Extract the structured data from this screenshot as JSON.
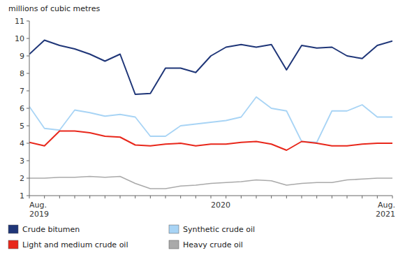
{
  "chart_data": {
    "type": "line",
    "title": "millions of cubic metres",
    "categories": [
      "Aug.\n2019",
      null,
      null,
      null,
      null,
      null,
      null,
      null,
      null,
      null,
      null,
      null,
      "2020",
      null,
      null,
      null,
      null,
      null,
      null,
      null,
      null,
      null,
      null,
      null,
      "Aug.\n2021"
    ],
    "series": [
      {
        "name": "Crude bitumen",
        "color": "#1f3678",
        "values": [
          9.1,
          9.9,
          9.6,
          9.4,
          9.1,
          8.7,
          9.1,
          6.8,
          6.85,
          8.3,
          8.3,
          8.05,
          9.0,
          9.5,
          9.65,
          9.5,
          9.65,
          8.2,
          9.6,
          9.45,
          9.5,
          9.0,
          8.85,
          9.6,
          9.85
        ]
      },
      {
        "name": "Synthetic crude oil",
        "color": "#a8d4f5",
        "values": [
          6.1,
          4.85,
          4.75,
          5.9,
          5.75,
          5.55,
          5.65,
          5.5,
          4.4,
          4.4,
          5.0,
          5.1,
          5.2,
          5.3,
          5.5,
          6.65,
          6.0,
          5.85,
          4.1,
          4.05,
          5.85,
          5.85,
          6.2,
          5.5,
          5.5
        ]
      },
      {
        "name": "Light and medium crude oil",
        "color": "#e8271b",
        "values": [
          4.05,
          3.85,
          4.7,
          4.7,
          4.6,
          4.4,
          4.35,
          3.9,
          3.85,
          3.95,
          4.0,
          3.85,
          3.95,
          3.95,
          4.05,
          4.1,
          3.95,
          3.6,
          4.1,
          4.0,
          3.85,
          3.85,
          3.95,
          4.0,
          4.0
        ]
      },
      {
        "name": "Heavy crude oil",
        "color": "#aaaaaa",
        "values": [
          2.0,
          2.0,
          2.05,
          2.05,
          2.1,
          2.05,
          2.1,
          1.7,
          1.4,
          1.4,
          1.55,
          1.6,
          1.7,
          1.75,
          1.8,
          1.9,
          1.85,
          1.6,
          1.7,
          1.75,
          1.75,
          1.9,
          1.95,
          2.0,
          2.0
        ]
      }
    ],
    "ylim": [
      1,
      11
    ],
    "yticks": [
      1,
      2,
      3,
      4,
      5,
      6,
      7,
      8,
      9,
      10,
      11
    ],
    "grid": false,
    "legend": "bottom"
  }
}
